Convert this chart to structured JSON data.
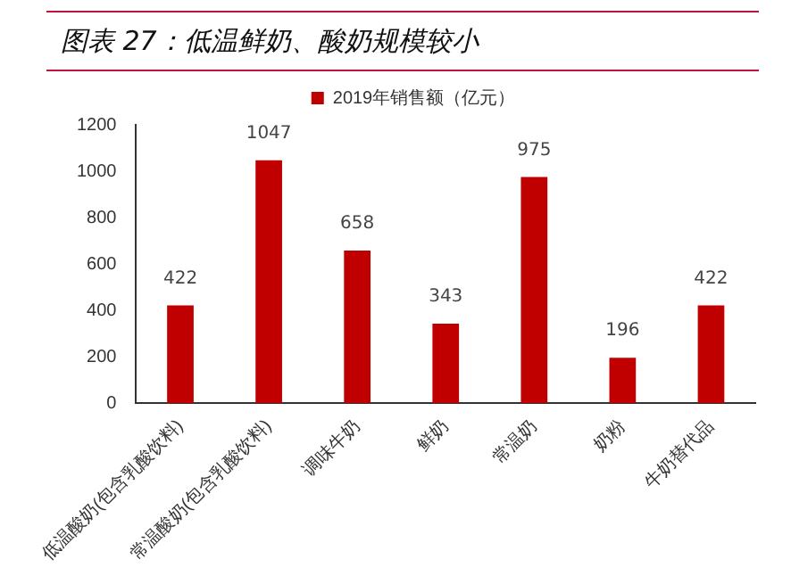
{
  "chart_data": {
    "type": "bar",
    "title": "图表 27：低温鲜奶、酸奶规模较小",
    "categories": [
      "低温酸奶(包含乳酸饮料)",
      "常温酸奶(包含乳酸饮料)",
      "调味牛奶",
      "鲜奶",
      "常温奶",
      "奶粉",
      "牛奶替代品"
    ],
    "series": [
      {
        "name": "2019年销售额（亿元）",
        "color": "#c00000",
        "values": [
          422,
          1047,
          658,
          343,
          975,
          196,
          422
        ]
      }
    ],
    "ylim": [
      0,
      1200
    ],
    "yticks": [
      0,
      200,
      400,
      600,
      800,
      1000,
      1200
    ],
    "grid": false,
    "legend": "top",
    "data_labels": true
  }
}
